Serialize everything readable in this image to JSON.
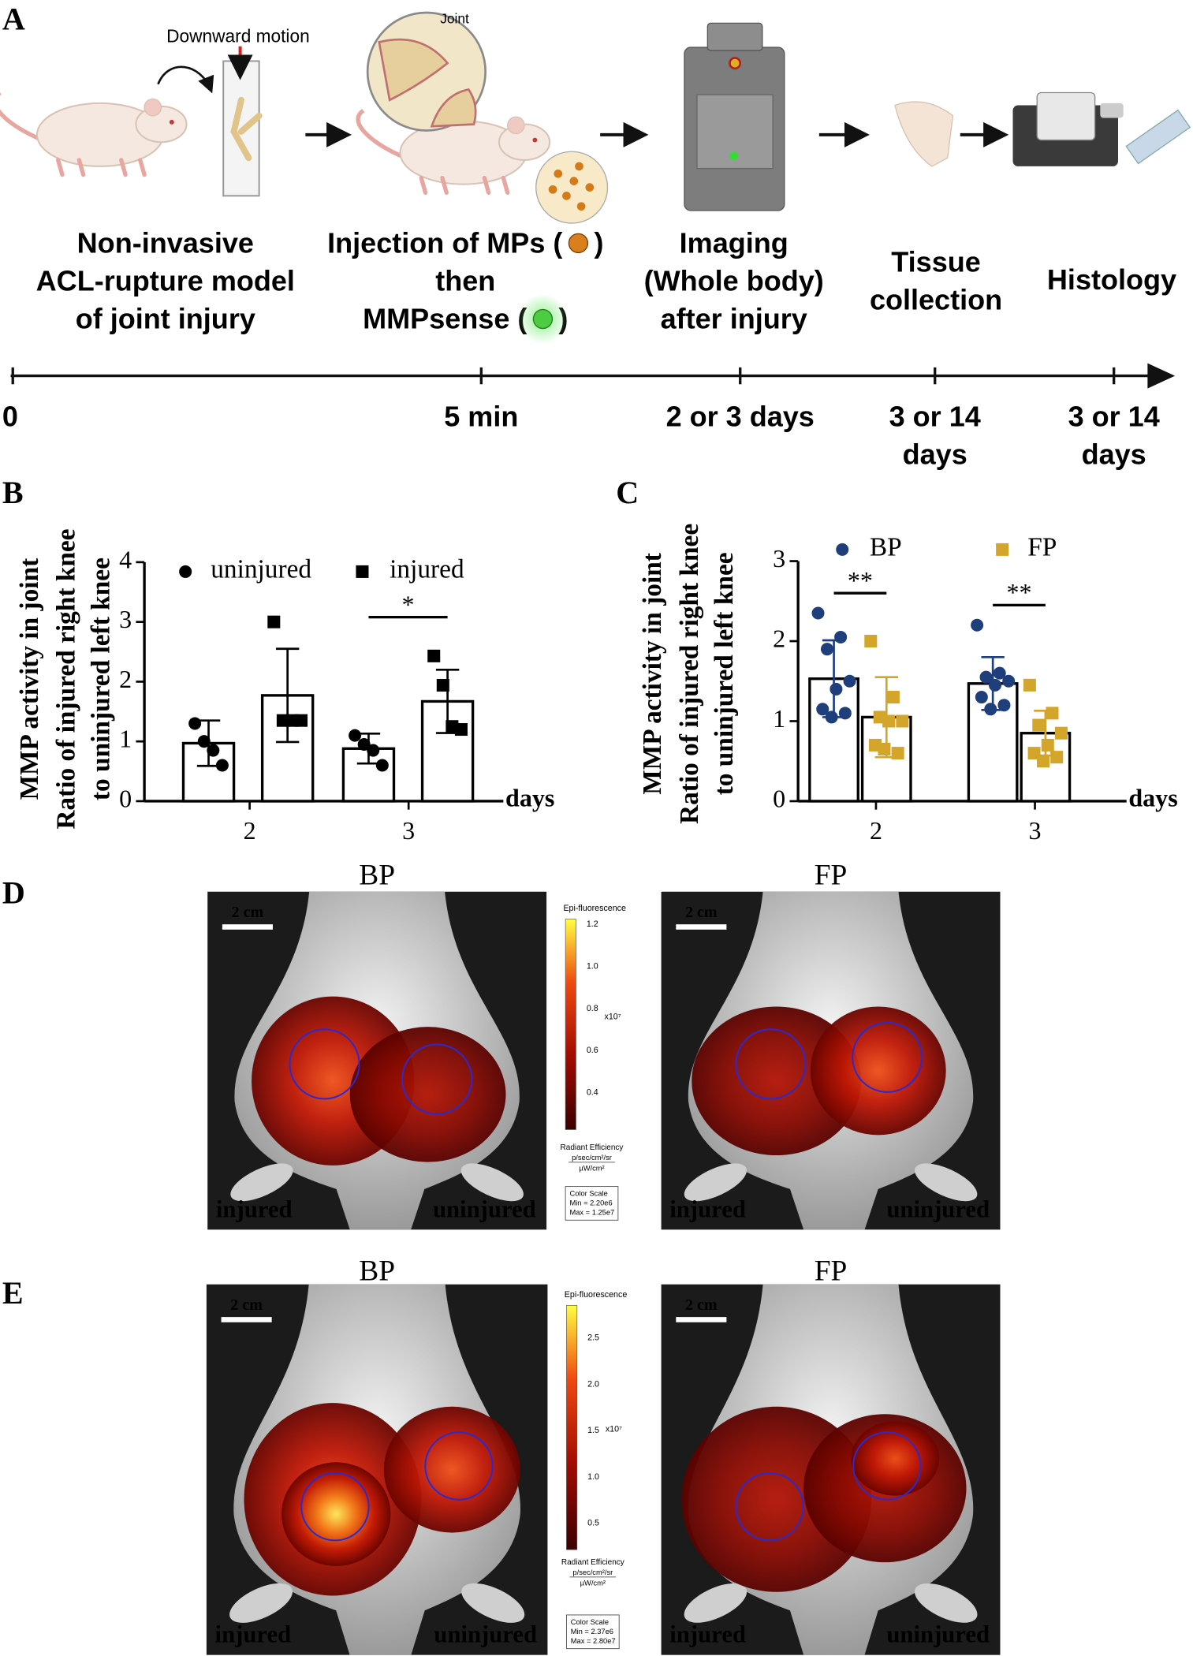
{
  "workflow": {
    "panel": "A",
    "annotations": {
      "motion": "Downward motion",
      "joint": "Joint"
    },
    "steps": [
      [
        [
          "Non-invasive"
        ],
        [
          "ACL-rupture model"
        ],
        [
          "of joint injury"
        ]
      ],
      [
        [
          "Injection of MPs (",
          ")"
        ],
        [
          "then"
        ],
        [
          "MMPsense (",
          ")"
        ]
      ],
      [
        [
          "Imaging"
        ],
        [
          "(Whole body)"
        ],
        [
          "after injury"
        ]
      ],
      [
        [
          "Tissue"
        ],
        [
          "collection"
        ]
      ],
      [
        [
          "Histology"
        ]
      ]
    ],
    "timeline": [
      [
        "0"
      ],
      [
        "5 min"
      ],
      [
        "2 or 3 days"
      ],
      [
        "3 or 14",
        "days"
      ],
      [
        "3 or 14",
        "days"
      ]
    ]
  },
  "chart_data": [
    {
      "type": "bar",
      "panel": "B",
      "categories": [
        "2",
        "3"
      ],
      "xlabel": "days",
      "ylabel": [
        "MMP activity in joint",
        "Ratio of injured right knee",
        "to uninjured left knee"
      ],
      "ylim": [
        0,
        4
      ],
      "yticks": [
        0,
        1,
        2,
        3,
        4
      ],
      "series": [
        {
          "name": "uninjured",
          "marker": "circle",
          "color": "#000000",
          "values": [
            0.97,
            0.88
          ],
          "errors": [
            0.38,
            0.25
          ],
          "points": [
            [
              1.3,
              1.0,
              0.85,
              0.6
            ],
            [
              1.1,
              0.95,
              0.85,
              0.6
            ]
          ]
        },
        {
          "name": "injured",
          "marker": "square",
          "color": "#000000",
          "values": [
            1.77,
            1.67
          ],
          "errors": [
            0.78,
            0.53
          ],
          "points": [
            [
              3.0,
              1.35,
              1.35,
              1.35
            ],
            [
              2.43,
              1.94,
              1.25,
              1.2
            ]
          ]
        }
      ],
      "significance": [
        {
          "category": 1,
          "label": "*"
        }
      ]
    },
    {
      "type": "bar",
      "panel": "C",
      "categories": [
        "2",
        "3"
      ],
      "xlabel": "days",
      "ylabel": [
        "MMP activity in joint",
        "Ratio of injured right knee",
        "to uninjured left knee"
      ],
      "ylim": [
        0,
        3
      ],
      "yticks": [
        0,
        1,
        2,
        3
      ],
      "series": [
        {
          "name": "BP",
          "marker": "circle",
          "color": "#1f3e7c",
          "values": [
            1.53,
            1.47
          ],
          "errors": [
            0.48,
            0.33
          ],
          "points": [
            [
              2.35,
              2.05,
              1.9,
              1.5,
              1.4,
              1.15,
              1.1,
              1.05
            ],
            [
              2.2,
              1.6,
              1.55,
              1.5,
              1.45,
              1.3,
              1.2,
              1.15
            ]
          ]
        },
        {
          "name": "FP",
          "marker": "square",
          "color": "#d4a52b",
          "values": [
            1.05,
            0.85
          ],
          "errors": [
            0.5,
            0.28
          ],
          "points": [
            [
              2.0,
              1.3,
              1.05,
              1.0,
              1.0,
              0.7,
              0.6,
              0.65
            ],
            [
              1.45,
              1.1,
              0.95,
              0.85,
              0.7,
              0.6,
              0.55,
              0.5
            ]
          ]
        }
      ],
      "significance": [
        {
          "category": 0,
          "label": "**"
        },
        {
          "category": 1,
          "label": "**"
        }
      ]
    }
  ],
  "imaging": [
    {
      "panel": "D",
      "images": [
        {
          "title": "BP",
          "scale_bar": "2 cm",
          "left": "injured",
          "right": "uninjured"
        },
        {
          "title": "FP",
          "scale_bar": "2 cm",
          "left": "injured",
          "right": "uninjured"
        }
      ],
      "colorbar": {
        "title": "Epi-fluorescence",
        "ticks": [
          "1.2",
          "1.0",
          "0.8",
          "0.6",
          "0.4"
        ],
        "multiplier": "x10⁷",
        "unit_title": "Radiant Efficiency",
        "unit_num": "p/sec/cm²/sr",
        "unit_den": "µW/cm²",
        "scale_title": "Color Scale",
        "min": "Min = 2.20e6",
        "max": "Max = 1.25e7"
      }
    },
    {
      "panel": "E",
      "images": [
        {
          "title": "BP",
          "scale_bar": "2 cm",
          "left": "injured",
          "right": "uninjured"
        },
        {
          "title": "FP",
          "scale_bar": "2 cm",
          "left": "injured",
          "right": "uninjured"
        }
      ],
      "colorbar": {
        "title": "Epi-fluorescence",
        "ticks": [
          "2.5",
          "2.0",
          "1.5",
          "1.0",
          "0.5"
        ],
        "multiplier": "x10⁷",
        "unit_title": "Radiant Efficiency",
        "unit_num": "p/sec/cm²/sr",
        "unit_den": "µW/cm²",
        "scale_title": "Color Scale",
        "min": "Min = 2.37e6",
        "max": "Max = 2.80e7"
      }
    }
  ]
}
